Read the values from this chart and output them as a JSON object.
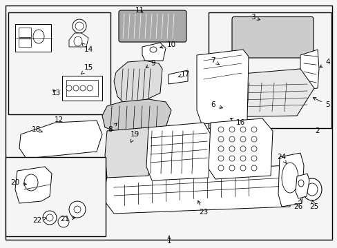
{
  "bg_color": "#f5f5f5",
  "border_color": "#000000",
  "fig_width": 4.89,
  "fig_height": 3.6,
  "dpi": 100,
  "lc": "#000000",
  "lw": 0.7,
  "fs": 7.5
}
